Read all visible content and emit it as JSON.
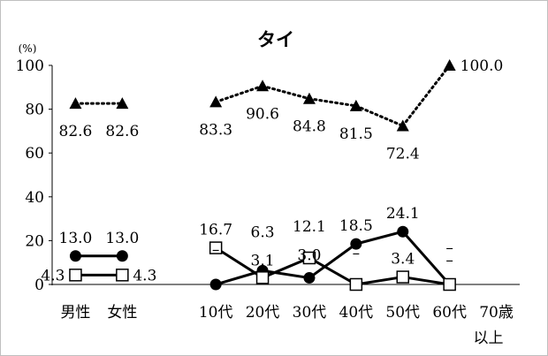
{
  "chart_data": {
    "type": "line",
    "title": "タイ",
    "unit_label": "(%)",
    "ylim": [
      0,
      100
    ],
    "y_ticks": [
      "0",
      "20",
      "40",
      "60",
      "80",
      "100"
    ],
    "categories": [
      "男性",
      "女性",
      "",
      "10代",
      "20代",
      "30代",
      "40代",
      "50代",
      "60代",
      "70歳以上"
    ],
    "category_lines": [
      [
        "男性"
      ],
      [
        "女性"
      ],
      [
        ""
      ],
      [
        "10代"
      ],
      [
        "20代"
      ],
      [
        "30代"
      ],
      [
        "40代"
      ],
      [
        "50代"
      ],
      [
        "60代"
      ],
      [
        "70歳",
        "以上"
      ]
    ],
    "series": [
      {
        "marker": "triangle",
        "style": "dotted",
        "values": [
          82.6,
          82.6,
          null,
          83.3,
          90.6,
          84.8,
          81.5,
          72.4,
          100.0,
          null
        ],
        "labels": [
          "82.6",
          "82.6",
          "",
          "83.3",
          "90.6",
          "84.8",
          "81.5",
          "72.4",
          "100.0",
          ""
        ],
        "label_pos": [
          "below",
          "below",
          "",
          "below",
          "below",
          "below",
          "below",
          "below",
          "right",
          ""
        ]
      },
      {
        "marker": "circle",
        "style": "solid",
        "values": [
          13.0,
          13.0,
          null,
          0,
          6.3,
          3.0,
          18.5,
          24.1,
          0,
          null
        ],
        "labels": [
          "13.0",
          "13.0",
          "",
          "–",
          "6.3",
          "3.0",
          "18.5",
          "24.1",
          "–",
          ""
        ],
        "label_pos": [
          "above",
          "above",
          "",
          "above",
          "above",
          "above",
          "above",
          "above",
          "above",
          ""
        ]
      },
      {
        "marker": "square",
        "style": "solid",
        "values": [
          4.3,
          4.3,
          null,
          16.7,
          3.1,
          12.1,
          0,
          3.4,
          0,
          null
        ],
        "labels": [
          "4.3",
          "4.3",
          "",
          "16.7",
          "3.1",
          "12.1",
          "–",
          "3.4",
          "–",
          ""
        ],
        "label_pos": [
          "left",
          "right",
          "",
          "above",
          "above",
          "above",
          "above",
          "above",
          "above",
          ""
        ]
      }
    ],
    "colors": {
      "line": "#000000",
      "axis": "#000000",
      "frame": "#bfbfbf"
    }
  }
}
